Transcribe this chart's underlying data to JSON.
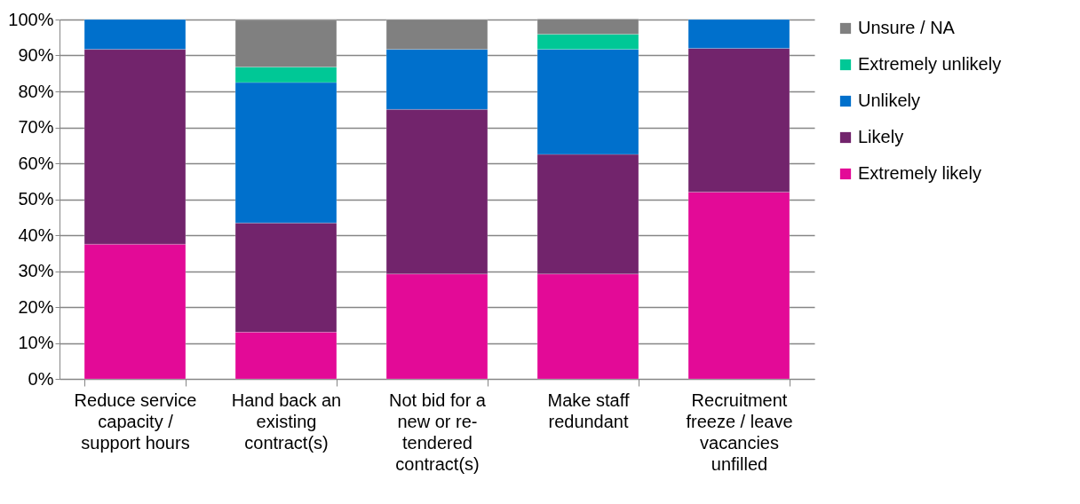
{
  "chart_data": {
    "type": "bar",
    "stacked": true,
    "categories": [
      "Reduce service capacity / support hours",
      "Hand back an existing contract(s)",
      "Not bid for a new or re-tendered contract(s)",
      "Make staff redundant",
      "Recruitment freeze / leave vacancies unfilled"
    ],
    "series": [
      {
        "name": "Extremely likely",
        "color": "#e30a97",
        "values": [
          37.5,
          13.0,
          29.2,
          29.2,
          52.0
        ]
      },
      {
        "name": "Likely",
        "color": "#72246c",
        "values": [
          54.2,
          30.4,
          45.8,
          33.3,
          40.0
        ]
      },
      {
        "name": "Unlikely",
        "color": "#0070cc",
        "values": [
          8.3,
          39.1,
          16.7,
          29.2,
          8.0
        ]
      },
      {
        "name": "Extremely unlikely",
        "color": "#00c896",
        "values": [
          null,
          4.3,
          null,
          4.2,
          null
        ]
      },
      {
        "name": "Unsure / NA",
        "color": "#808080",
        "values": [
          null,
          13.0,
          8.3,
          4.2,
          null
        ]
      }
    ],
    "ylim": [
      0,
      100
    ],
    "yticks": [
      {
        "value": 0,
        "label": "0%"
      },
      {
        "value": 10,
        "label": "10%"
      },
      {
        "value": 20,
        "label": "20%"
      },
      {
        "value": 30,
        "label": "30%"
      },
      {
        "value": 40,
        "label": "40%"
      },
      {
        "value": 50,
        "label": "50%"
      },
      {
        "value": 60,
        "label": "60%"
      },
      {
        "value": 70,
        "label": "70%"
      },
      {
        "value": 80,
        "label": "80%"
      },
      {
        "value": 90,
        "label": "90%"
      },
      {
        "value": 100,
        "label": "100%"
      }
    ],
    "grid": "y",
    "legend": "right"
  }
}
